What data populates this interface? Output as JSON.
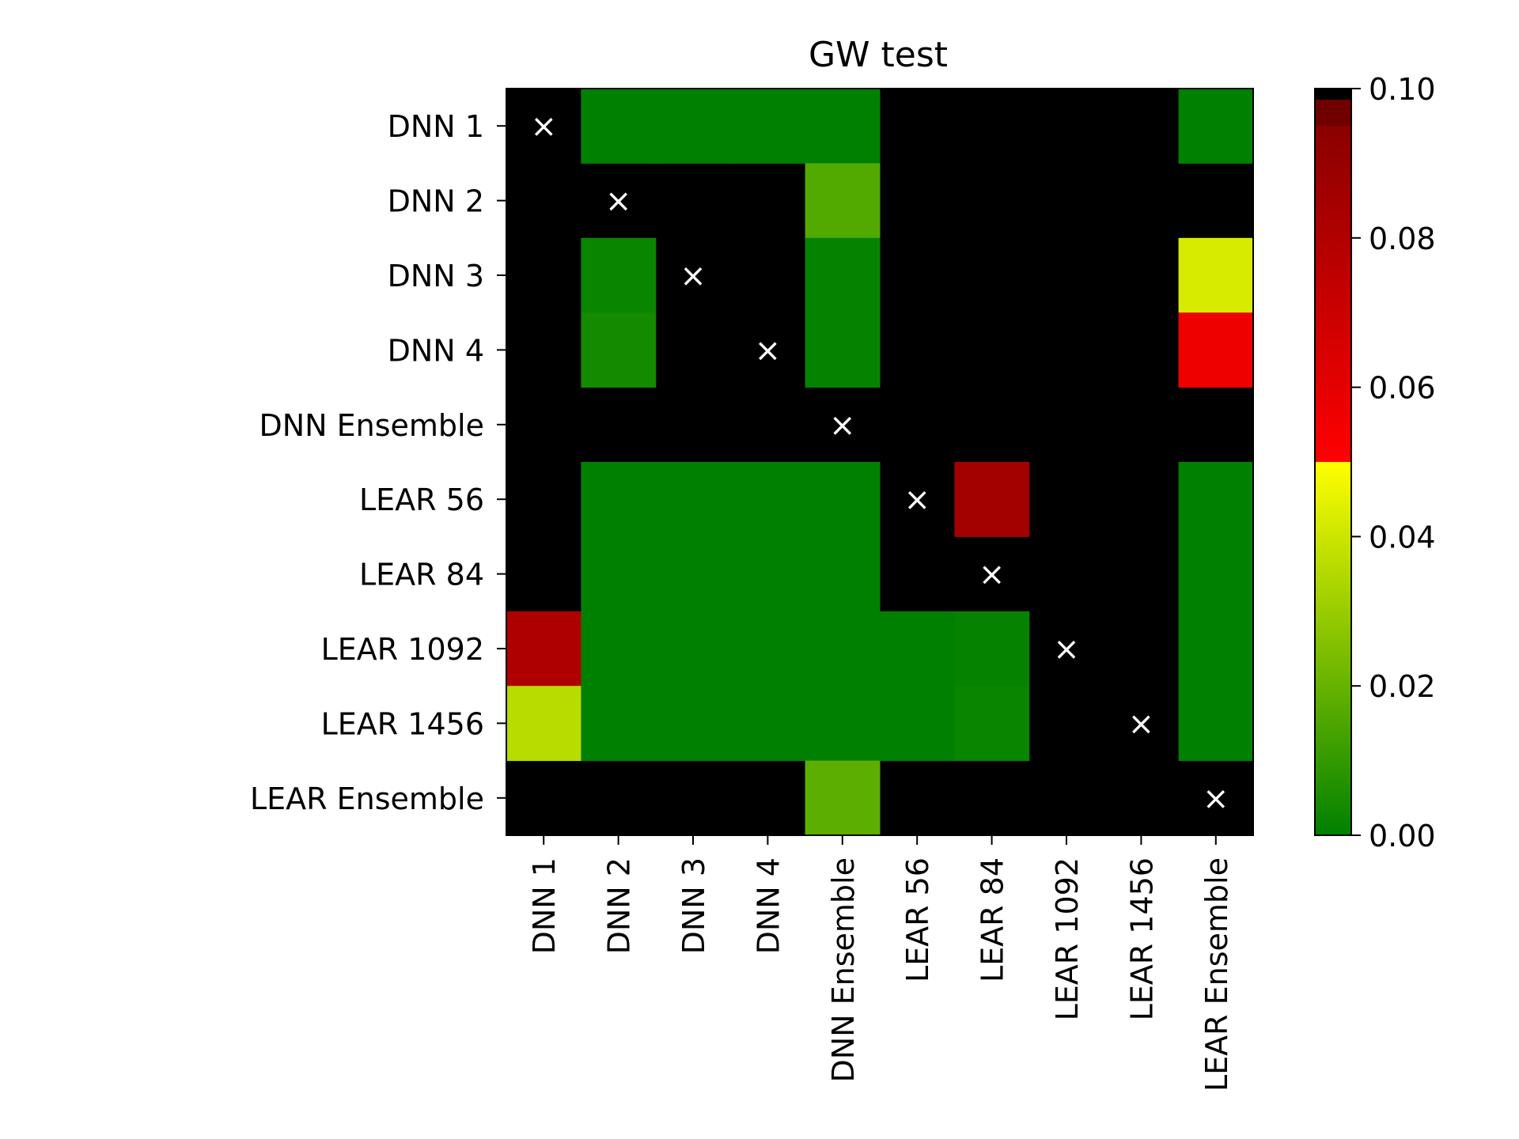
{
  "chart_data": {
    "type": "heatmap",
    "title": "GW test",
    "xlabel": "",
    "ylabel": "",
    "rows": [
      "DNN 1",
      "DNN 2",
      "DNN 3",
      "DNN 4",
      "DNN Ensemble",
      "LEAR 56",
      "LEAR 84",
      "LEAR 1092",
      "LEAR 1456",
      "LEAR Ensemble"
    ],
    "columns": [
      "DNN 1",
      "DNN 2",
      "DNN 3",
      "DNN 4",
      "DNN Ensemble",
      "LEAR 56",
      "LEAR 84",
      "LEAR 1092",
      "LEAR 1456",
      "LEAR Ensemble"
    ],
    "values": [
      [
        null,
        0.0,
        0.0,
        0.0,
        0.0,
        null,
        null,
        null,
        null,
        0.0
      ],
      [
        null,
        null,
        null,
        null,
        0.016,
        null,
        null,
        null,
        null,
        null
      ],
      [
        null,
        0.002,
        null,
        null,
        0.001,
        null,
        null,
        null,
        null,
        0.042
      ],
      [
        null,
        0.004,
        null,
        null,
        0.001,
        null,
        null,
        null,
        null,
        0.056
      ],
      [
        null,
        null,
        null,
        null,
        null,
        null,
        null,
        null,
        null,
        null
      ],
      [
        null,
        0.0,
        0.0,
        0.0,
        0.0,
        null,
        0.082,
        null,
        null,
        0.0
      ],
      [
        null,
        0.0,
        0.0,
        0.0,
        0.0,
        null,
        null,
        null,
        null,
        0.0
      ],
      [
        0.078,
        0.0,
        0.0,
        0.0,
        0.0,
        0.0,
        0.001,
        null,
        null,
        0.0
      ],
      [
        0.036,
        0.0,
        0.0,
        0.0,
        0.0,
        0.0,
        0.002,
        null,
        null,
        0.0
      ],
      [
        null,
        null,
        null,
        null,
        0.018,
        null,
        null,
        null,
        null,
        null
      ]
    ],
    "diagonal_marker": "×",
    "colorbar": {
      "range": [
        0.0,
        0.1
      ],
      "ticks": [
        "0.00",
        "0.02",
        "0.04",
        "0.06",
        "0.08",
        "0.10"
      ],
      "colormap": "green-yellow-red-black"
    },
    "colors": {
      "background": "#000000",
      "green": "#008000",
      "yellow": "#ffff00",
      "red": "#ff0000",
      "darkred": "#700000"
    }
  }
}
